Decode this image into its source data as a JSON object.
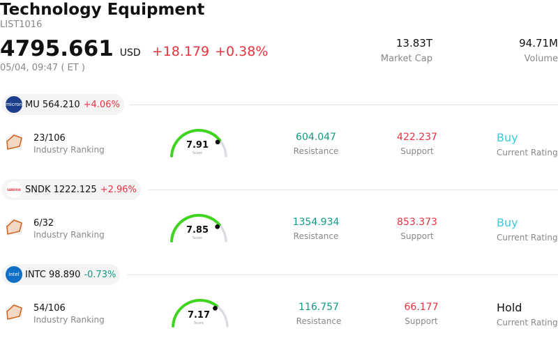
{
  "header": {
    "title": "Technology Equipment",
    "code": "LIST1016",
    "price": "4795.661",
    "currency": "USD",
    "change": "+18.179",
    "change_pct": "+0.38%",
    "datetime": "05/04, 09:47 ( ET )",
    "market_cap_value": "13.83T",
    "market_cap_label": "Market Cap",
    "volume_value": "94.71M",
    "volume_label": "Volume"
  },
  "colors": {
    "up": "#e8323f",
    "down": "#0e9a83",
    "gauge": "#3ed41f",
    "buy": "#3cc9d4"
  },
  "labels": {
    "industry_ranking": "Industry Ranking",
    "resistance": "Resistance",
    "support": "Support",
    "current_rating": "Current Rating",
    "score": "Score"
  },
  "stocks": [
    {
      "symbol_price": "MU 564.210",
      "change_pct": "+4.06%",
      "direction": "up",
      "logo_icon": "micron-logo-icon",
      "ranking": "23/106",
      "score": "7.91",
      "score_fraction": 0.791,
      "resistance": "604.047",
      "support": "422.237",
      "rating": "Buy"
    },
    {
      "symbol_price": "SNDK 1222.125",
      "change_pct": "+2.96%",
      "direction": "up",
      "logo_icon": "sandisk-logo-icon",
      "ranking": "6/32",
      "score": "7.85",
      "score_fraction": 0.785,
      "resistance": "1354.934",
      "support": "853.373",
      "rating": "Buy"
    },
    {
      "symbol_price": "INTC 98.890",
      "change_pct": "-0.73%",
      "direction": "down",
      "logo_icon": "intel-logo-icon",
      "ranking": "54/106",
      "score": "7.17",
      "score_fraction": 0.717,
      "resistance": "116.757",
      "support": "66.177",
      "rating": "Hold"
    }
  ]
}
